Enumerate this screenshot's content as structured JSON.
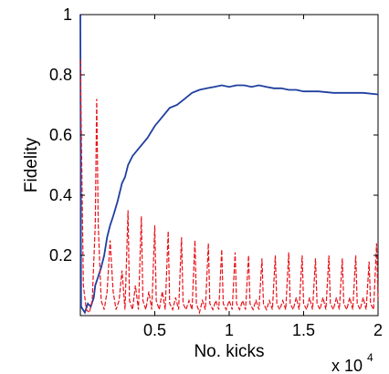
{
  "chart_data": {
    "type": "line",
    "title": "",
    "xlabel": "No. kicks",
    "ylabel": "Fidelity",
    "x_exponent_label": "x 10",
    "x_exponent_power": "4",
    "xlim": [
      0,
      2
    ],
    "ylim": [
      0,
      1
    ],
    "xticks": [
      0.5,
      1,
      1.5,
      2
    ],
    "xtick_labels": [
      "0.5",
      "1",
      "1.5",
      "2"
    ],
    "yticks": [
      0.2,
      0.4,
      0.6,
      0.8,
      1
    ],
    "ytick_labels": [
      "0.2",
      "0.4",
      "0.6",
      "0.8",
      "1"
    ],
    "grid": false,
    "series": [
      {
        "color": "#1f3f9f",
        "style": "solid",
        "points": [
          [
            0,
            1.0
          ],
          [
            0.005,
            0.03
          ],
          [
            0.03,
            0.01
          ],
          [
            0.05,
            0.04
          ],
          [
            0.07,
            0.03
          ],
          [
            0.09,
            0.06
          ],
          [
            0.1,
            0.1
          ],
          [
            0.12,
            0.13
          ],
          [
            0.14,
            0.16
          ],
          [
            0.16,
            0.2
          ],
          [
            0.18,
            0.26
          ],
          [
            0.2,
            0.3
          ],
          [
            0.22,
            0.33
          ],
          [
            0.25,
            0.38
          ],
          [
            0.28,
            0.44
          ],
          [
            0.3,
            0.46
          ],
          [
            0.32,
            0.5
          ],
          [
            0.35,
            0.53
          ],
          [
            0.4,
            0.56
          ],
          [
            0.45,
            0.59
          ],
          [
            0.5,
            0.63
          ],
          [
            0.55,
            0.66
          ],
          [
            0.6,
            0.69
          ],
          [
            0.65,
            0.7
          ],
          [
            0.7,
            0.72
          ],
          [
            0.75,
            0.74
          ],
          [
            0.8,
            0.75
          ],
          [
            0.85,
            0.755
          ],
          [
            0.9,
            0.76
          ],
          [
            0.95,
            0.765
          ],
          [
            1.0,
            0.76
          ],
          [
            1.05,
            0.765
          ],
          [
            1.1,
            0.765
          ],
          [
            1.15,
            0.76
          ],
          [
            1.2,
            0.765
          ],
          [
            1.25,
            0.76
          ],
          [
            1.3,
            0.755
          ],
          [
            1.35,
            0.755
          ],
          [
            1.4,
            0.75
          ],
          [
            1.45,
            0.75
          ],
          [
            1.5,
            0.745
          ],
          [
            1.6,
            0.745
          ],
          [
            1.7,
            0.74
          ],
          [
            1.8,
            0.74
          ],
          [
            1.9,
            0.74
          ],
          [
            2.0,
            0.735
          ]
        ]
      },
      {
        "color": "#e8141b",
        "style": "dashed",
        "points": [
          [
            0,
            0.85
          ],
          [
            0.02,
            0.1
          ],
          [
            0.04,
            0.02
          ],
          [
            0.06,
            0.01
          ],
          [
            0.08,
            0.05
          ],
          [
            0.1,
            0.3
          ],
          [
            0.11,
            0.72
          ],
          [
            0.12,
            0.3
          ],
          [
            0.14,
            0.05
          ],
          [
            0.16,
            0.02
          ],
          [
            0.18,
            0.08
          ],
          [
            0.2,
            0.25
          ],
          [
            0.22,
            0.08
          ],
          [
            0.24,
            0.02
          ],
          [
            0.26,
            0.05
          ],
          [
            0.28,
            0.15
          ],
          [
            0.3,
            0.02
          ],
          [
            0.32,
            0.35
          ],
          [
            0.33,
            0.05
          ],
          [
            0.35,
            0.02
          ],
          [
            0.37,
            0.1
          ],
          [
            0.39,
            0.02
          ],
          [
            0.41,
            0.33
          ],
          [
            0.42,
            0.05
          ],
          [
            0.44,
            0.02
          ],
          [
            0.46,
            0.08
          ],
          [
            0.48,
            0.02
          ],
          [
            0.5,
            0.3
          ],
          [
            0.51,
            0.05
          ],
          [
            0.53,
            0.02
          ],
          [
            0.55,
            0.08
          ],
          [
            0.57,
            0.02
          ],
          [
            0.59,
            0.28
          ],
          [
            0.6,
            0.04
          ],
          [
            0.62,
            0.02
          ],
          [
            0.64,
            0.06
          ],
          [
            0.66,
            0.02
          ],
          [
            0.68,
            0.26
          ],
          [
            0.69,
            0.04
          ],
          [
            0.71,
            0.02
          ],
          [
            0.73,
            0.05
          ],
          [
            0.75,
            0.02
          ],
          [
            0.77,
            0.25
          ],
          [
            0.78,
            0.04
          ],
          [
            0.8,
            0.01
          ],
          [
            0.82,
            0.05
          ],
          [
            0.84,
            0.02
          ],
          [
            0.86,
            0.24
          ],
          [
            0.87,
            0.04
          ],
          [
            0.89,
            0.02
          ],
          [
            0.91,
            0.05
          ],
          [
            0.93,
            0.02
          ],
          [
            0.95,
            0.22
          ],
          [
            0.96,
            0.04
          ],
          [
            0.98,
            0.02
          ],
          [
            1.0,
            0.05
          ],
          [
            1.02,
            0.02
          ],
          [
            1.04,
            0.21
          ],
          [
            1.05,
            0.04
          ],
          [
            1.07,
            0.02
          ],
          [
            1.09,
            0.05
          ],
          [
            1.11,
            0.02
          ],
          [
            1.13,
            0.2
          ],
          [
            1.14,
            0.04
          ],
          [
            1.16,
            0.02
          ],
          [
            1.18,
            0.05
          ],
          [
            1.2,
            0.02
          ],
          [
            1.22,
            0.19
          ],
          [
            1.23,
            0.04
          ],
          [
            1.25,
            0.02
          ],
          [
            1.27,
            0.05
          ],
          [
            1.29,
            0.02
          ],
          [
            1.31,
            0.2
          ],
          [
            1.32,
            0.04
          ],
          [
            1.34,
            0.02
          ],
          [
            1.36,
            0.05
          ],
          [
            1.38,
            0.02
          ],
          [
            1.4,
            0.21
          ],
          [
            1.41,
            0.04
          ],
          [
            1.43,
            0.02
          ],
          [
            1.45,
            0.06
          ],
          [
            1.47,
            0.02
          ],
          [
            1.49,
            0.2
          ],
          [
            1.5,
            0.04
          ],
          [
            1.52,
            0.02
          ],
          [
            1.54,
            0.06
          ],
          [
            1.56,
            0.02
          ],
          [
            1.58,
            0.19
          ],
          [
            1.59,
            0.04
          ],
          [
            1.61,
            0.02
          ],
          [
            1.63,
            0.06
          ],
          [
            1.65,
            0.02
          ],
          [
            1.67,
            0.2
          ],
          [
            1.68,
            0.04
          ],
          [
            1.7,
            0.02
          ],
          [
            1.72,
            0.06
          ],
          [
            1.74,
            0.02
          ],
          [
            1.76,
            0.19
          ],
          [
            1.77,
            0.04
          ],
          [
            1.79,
            0.02
          ],
          [
            1.81,
            0.06
          ],
          [
            1.83,
            0.02
          ],
          [
            1.85,
            0.2
          ],
          [
            1.86,
            0.04
          ],
          [
            1.88,
            0.02
          ],
          [
            1.9,
            0.06
          ],
          [
            1.92,
            0.02
          ],
          [
            1.94,
            0.18
          ],
          [
            1.95,
            0.04
          ],
          [
            1.97,
            0.02
          ],
          [
            1.99,
            0.24
          ],
          [
            2.0,
            0.05
          ]
        ]
      }
    ]
  }
}
